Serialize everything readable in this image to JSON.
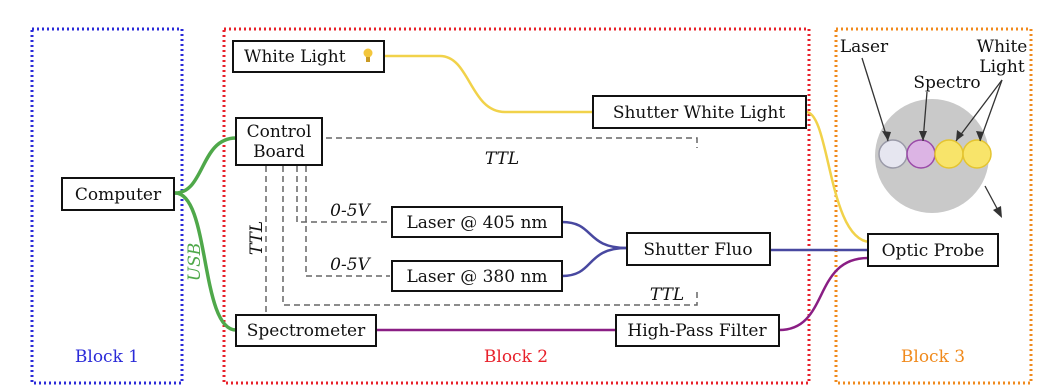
{
  "colors": {
    "block1": "#2a2ad8",
    "block2": "#e8202a",
    "block3": "#f08a1c",
    "usb_green": "#4fa84a",
    "white_light_fiber": "#f1d24a",
    "fluo_fiber": "#4848a0",
    "spectro_fiber": "#8a1e84",
    "ttl_dash": "#666666"
  },
  "blocks": {
    "block1": "Block 1",
    "block2": "Block 2",
    "block3": "Block 3"
  },
  "components": {
    "computer": "Computer",
    "white_light": "White Light",
    "control_board_line1": "Control",
    "control_board_line2": "Board",
    "shutter_white_light": "Shutter White Light",
    "laser_405": "Laser @ 405 nm",
    "laser_380": "Laser @ 380 nm",
    "shutter_fluo": "Shutter Fluo",
    "spectrometer": "Spectrometer",
    "high_pass_filter": "High-Pass Filter",
    "optic_probe": "Optic Probe"
  },
  "signals": {
    "usb": "USB",
    "ttl_top": "TTL",
    "ttl_vertical": "TTL",
    "ttl_bottom": "TTL",
    "v_405": "0-5V",
    "v_380": "0-5V"
  },
  "probe_legend": {
    "laser": "Laser",
    "spectro": "Spectro",
    "white_line1": "White",
    "white_line2": "Light"
  },
  "icons": {
    "white_light_icon": "lightbulb-icon"
  }
}
